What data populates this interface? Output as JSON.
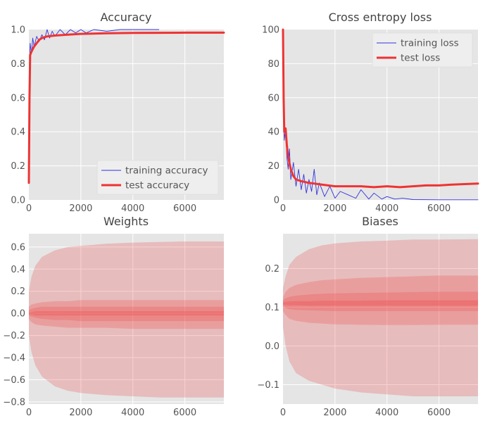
{
  "chart_data": [
    {
      "id": "accuracy",
      "type": "line",
      "title": "Accuracy",
      "xlim": [
        0,
        7500
      ],
      "ylim": [
        0,
        1.0
      ],
      "xticks": [
        0,
        2000,
        4000,
        6000
      ],
      "yticks": [
        0.0,
        0.2,
        0.4,
        0.6,
        0.8,
        1.0
      ],
      "ytick_labels": [
        "0.0",
        "0.2",
        "0.4",
        "0.6",
        "0.8",
        "1.0"
      ],
      "grid": true,
      "legend_position": "lower-right",
      "series": [
        {
          "name": "training accuracy",
          "color": "#3333dd",
          "style": "thin-line",
          "x": [
            0,
            25,
            50,
            100,
            150,
            200,
            300,
            400,
            500,
            600,
            700,
            800,
            900,
            1000,
            1200,
            1400,
            1600,
            1800,
            2000,
            2200,
            2500,
            3000,
            3500,
            4000,
            4500,
            5000
          ],
          "y": [
            0.1,
            0.78,
            0.92,
            0.86,
            0.95,
            0.9,
            0.96,
            0.93,
            0.97,
            0.94,
            1.0,
            0.95,
            0.99,
            0.96,
            1.0,
            0.97,
            1.0,
            0.98,
            1.0,
            0.98,
            1.0,
            0.99,
            1.0,
            1.0,
            1.0,
            1.0
          ]
        },
        {
          "name": "test accuracy",
          "color": "#ee3333",
          "style": "thick-line",
          "x": [
            0,
            25,
            50,
            100,
            200,
            300,
            400,
            500,
            700,
            1000,
            1500,
            2000,
            3000,
            4000,
            5000,
            6000,
            7500
          ],
          "y": [
            0.1,
            0.6,
            0.85,
            0.87,
            0.9,
            0.92,
            0.94,
            0.95,
            0.96,
            0.965,
            0.97,
            0.975,
            0.978,
            0.98,
            0.981,
            0.982,
            0.982
          ]
        }
      ]
    },
    {
      "id": "loss",
      "type": "line",
      "title": "Cross entropy loss",
      "xlim": [
        0,
        7500
      ],
      "ylim": [
        0,
        100
      ],
      "xticks": [
        0,
        2000,
        4000,
        6000
      ],
      "yticks": [
        0,
        20,
        40,
        60,
        80,
        100
      ],
      "ytick_labels": [
        "0",
        "20",
        "40",
        "60",
        "80",
        "100"
      ],
      "grid": true,
      "legend_position": "upper-right",
      "series": [
        {
          "name": "training loss",
          "color": "#3333dd",
          "style": "thin-line",
          "x": [
            0,
            25,
            50,
            100,
            150,
            200,
            250,
            300,
            400,
            500,
            600,
            700,
            800,
            900,
            1000,
            1100,
            1200,
            1300,
            1400,
            1600,
            1800,
            2000,
            2200,
            2500,
            2800,
            3000,
            3300,
            3500,
            3800,
            4000,
            4300,
            4600,
            5000,
            6000,
            7500
          ],
          "y": [
            100,
            55,
            35,
            42,
            25,
            18,
            30,
            12,
            22,
            8,
            18,
            6,
            15,
            4,
            12,
            5,
            18,
            3,
            10,
            2,
            8,
            1,
            5,
            3,
            1,
            6,
            0.5,
            4,
            0.5,
            2,
            0.5,
            1,
            0.2,
            0.1,
            0.1
          ]
        },
        {
          "name": "test loss",
          "color": "#ee3333",
          "style": "thick-line",
          "x": [
            0,
            25,
            50,
            100,
            150,
            200,
            300,
            400,
            500,
            700,
            1000,
            1500,
            2000,
            2500,
            3000,
            3500,
            4000,
            4500,
            5000,
            5500,
            6000,
            6500,
            7000,
            7500
          ],
          "y": [
            100,
            60,
            40,
            42,
            32,
            25,
            18,
            14,
            12,
            11,
            10,
            9,
            8,
            8,
            8,
            7.5,
            8,
            7.5,
            8,
            8.5,
            8.5,
            9,
            9.3,
            9.6
          ]
        }
      ]
    },
    {
      "id": "weights",
      "type": "area",
      "title": "Weights",
      "xlim": [
        0,
        7500
      ],
      "ylim": [
        -0.82,
        0.72
      ],
      "xticks": [
        0,
        2000,
        4000,
        6000
      ],
      "yticks": [
        -0.8,
        -0.6,
        -0.4,
        -0.2,
        0.0,
        0.2,
        0.4,
        0.6
      ],
      "ytick_labels": [
        "−0.8",
        "−0.6",
        "−0.4",
        "−0.2",
        "0.0",
        "0.2",
        "0.4",
        "0.6"
      ],
      "grid": true,
      "color": "#ee4444",
      "x": [
        0,
        100,
        250,
        500,
        1000,
        1500,
        2000,
        3000,
        4000,
        5000,
        6000,
        7500
      ],
      "bands": [
        {
          "lower": [
            -0.2,
            -0.35,
            -0.47,
            -0.57,
            -0.66,
            -0.7,
            -0.72,
            -0.74,
            -0.75,
            -0.76,
            -0.76,
            -0.76
          ],
          "upper": [
            0.2,
            0.33,
            0.43,
            0.51,
            0.57,
            0.6,
            0.61,
            0.63,
            0.64,
            0.645,
            0.65,
            0.65
          ]
        },
        {
          "lower": [
            -0.05,
            -0.08,
            -0.1,
            -0.11,
            -0.12,
            -0.13,
            -0.13,
            -0.13,
            -0.14,
            -0.14,
            -0.14,
            -0.14
          ],
          "upper": [
            0.06,
            0.08,
            0.09,
            0.1,
            0.11,
            0.11,
            0.12,
            0.12,
            0.12,
            0.12,
            0.12,
            0.12
          ]
        },
        {
          "lower": [
            -0.02,
            -0.03,
            -0.04,
            -0.05,
            -0.06,
            -0.06,
            -0.07,
            -0.07,
            -0.07,
            -0.07,
            -0.07,
            -0.07
          ],
          "upper": [
            0.03,
            0.04,
            0.05,
            0.06,
            0.06,
            0.06,
            0.06,
            0.06,
            0.06,
            0.06,
            0.06,
            0.06
          ]
        },
        {
          "lower": [
            -0.01,
            -0.01,
            -0.02,
            -0.02,
            -0.02,
            -0.02,
            -0.02,
            -0.02,
            -0.02,
            -0.02,
            -0.02,
            -0.02
          ],
          "upper": [
            0.01,
            0.01,
            0.02,
            0.02,
            0.02,
            0.02,
            0.02,
            0.02,
            0.02,
            0.02,
            0.02,
            0.02
          ]
        }
      ]
    },
    {
      "id": "biases",
      "type": "area",
      "title": "Biases",
      "xlim": [
        0,
        7500
      ],
      "ylim": [
        -0.15,
        0.29
      ],
      "xticks": [
        0,
        2000,
        4000,
        6000
      ],
      "yticks": [
        -0.1,
        0.0,
        0.1,
        0.2
      ],
      "ytick_labels": [
        "−0.1",
        "0.0",
        "0.1",
        "0.2"
      ],
      "grid": true,
      "color": "#ee4444",
      "x": [
        0,
        100,
        250,
        500,
        1000,
        1500,
        2000,
        3000,
        4000,
        5000,
        6000,
        7500
      ],
      "bands": [
        {
          "lower": [
            0.05,
            0.0,
            -0.04,
            -0.07,
            -0.09,
            -0.1,
            -0.11,
            -0.12,
            -0.125,
            -0.13,
            -0.13,
            -0.13
          ],
          "upper": [
            0.15,
            0.18,
            0.21,
            0.23,
            0.25,
            0.26,
            0.265,
            0.27,
            0.272,
            0.275,
            0.275,
            0.276
          ]
        },
        {
          "lower": [
            0.09,
            0.08,
            0.07,
            0.065,
            0.06,
            0.058,
            0.056,
            0.055,
            0.054,
            0.054,
            0.055,
            0.055
          ],
          "upper": [
            0.125,
            0.14,
            0.15,
            0.158,
            0.165,
            0.17,
            0.172,
            0.176,
            0.178,
            0.18,
            0.182,
            0.182
          ]
        },
        {
          "lower": [
            0.103,
            0.098,
            0.095,
            0.093,
            0.092,
            0.091,
            0.09,
            0.09,
            0.09,
            0.09,
            0.09,
            0.09
          ],
          "upper": [
            0.118,
            0.123,
            0.127,
            0.13,
            0.133,
            0.135,
            0.136,
            0.137,
            0.138,
            0.139,
            0.14,
            0.14
          ]
        },
        {
          "lower": [
            0.107,
            0.106,
            0.105,
            0.105,
            0.104,
            0.104,
            0.104,
            0.104,
            0.104,
            0.104,
            0.104,
            0.104
          ],
          "upper": [
            0.112,
            0.114,
            0.115,
            0.116,
            0.116,
            0.117,
            0.117,
            0.117,
            0.118,
            0.118,
            0.118,
            0.118
          ]
        }
      ]
    }
  ]
}
